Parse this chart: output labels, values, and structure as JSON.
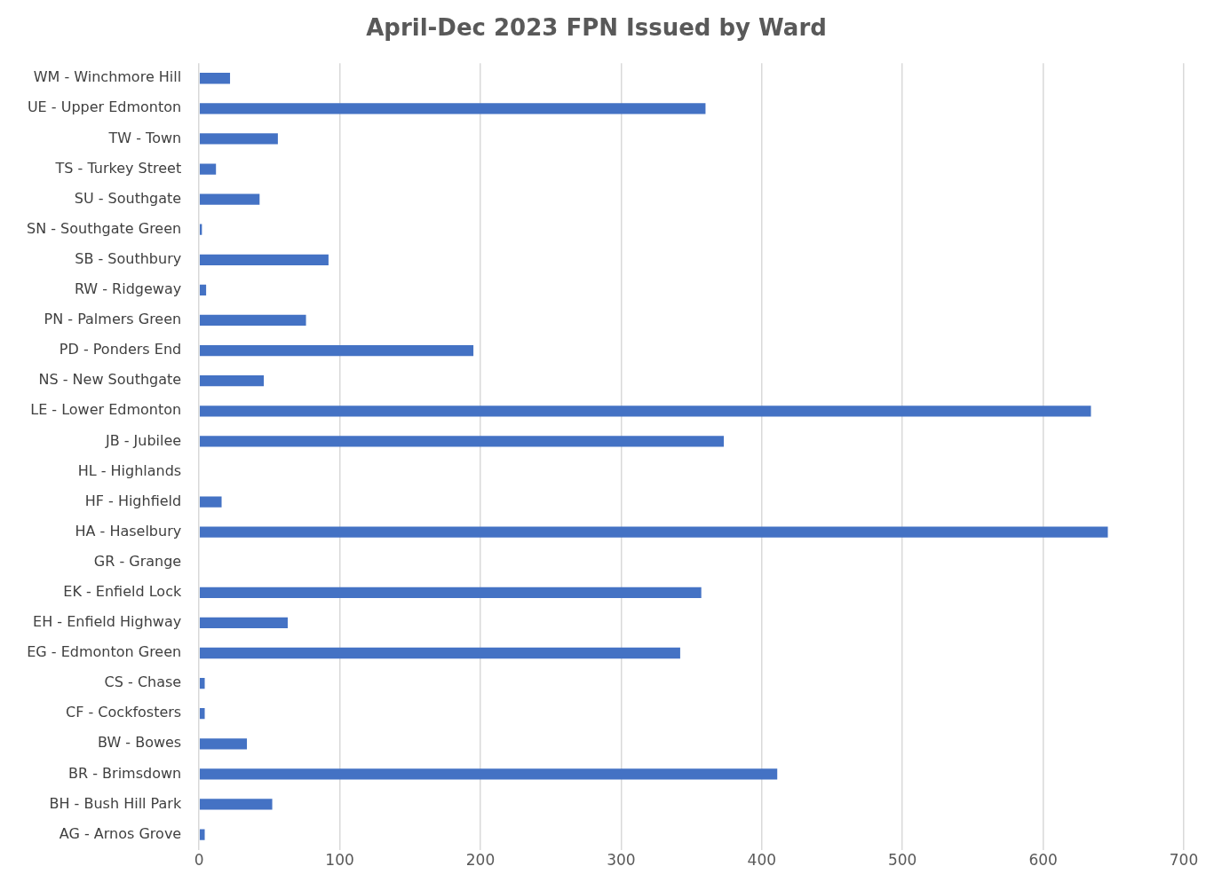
{
  "chart_data": {
    "type": "bar",
    "orientation": "horizontal",
    "title": "April-Dec 2023 FPN Issued by Ward",
    "categories": [
      "WM - Winchmore Hill",
      "UE - Upper Edmonton",
      "TW - Town",
      "TS - Turkey Street",
      "SU - Southgate",
      "SN - Southgate Green",
      "SB - Southbury",
      "RW - Ridgeway",
      "PN - Palmers Green",
      "PD - Ponders End",
      "NS - New Southgate",
      "LE - Lower Edmonton",
      "JB - Jubilee",
      "HL - Highlands",
      "HF - Highfield",
      "HA - Haselbury",
      "GR - Grange",
      "EK - Enfield Lock",
      "EH - Enfield Highway",
      "EG - Edmonton Green",
      "CS - Chase",
      "CF - Cockfosters",
      "BW - Bowes",
      "BR - Brimsdown",
      "BH - Bush Hill Park",
      "AG - Arnos Grove"
    ],
    "values": [
      22,
      360,
      56,
      12,
      43,
      2,
      92,
      5,
      76,
      195,
      46,
      634,
      373,
      0,
      16,
      646,
      0,
      357,
      63,
      342,
      4,
      4,
      34,
      411,
      52,
      4
    ],
    "color": "#4472c4",
    "xlim": [
      0,
      700
    ],
    "xticks": [
      0,
      100,
      200,
      300,
      400,
      500,
      600,
      700
    ],
    "grid": "x"
  }
}
